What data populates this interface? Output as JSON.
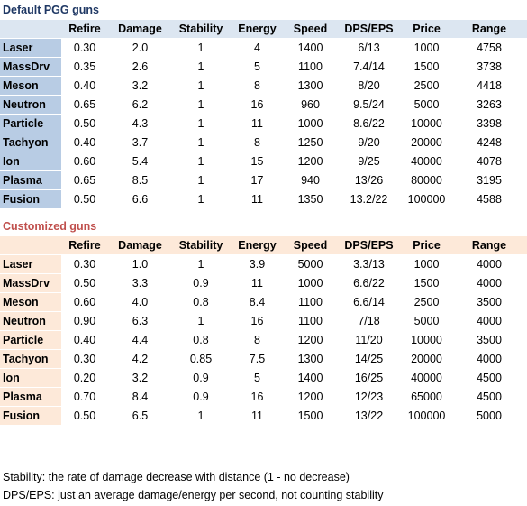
{
  "default_section": {
    "title": "Default PGG guns",
    "headers": [
      "",
      "Refire",
      "Damage",
      "Stability",
      "Energy",
      "Speed",
      "DPS/EPS",
      "Price",
      "Range"
    ],
    "rows": [
      [
        "Laser",
        "0.30",
        "2.0",
        "1",
        "4",
        "1400",
        "6/13",
        "1000",
        "4758"
      ],
      [
        "MassDrv",
        "0.35",
        "2.6",
        "1",
        "5",
        "1100",
        "7.4/14",
        "1500",
        "3738"
      ],
      [
        "Meson",
        "0.40",
        "3.2",
        "1",
        "8",
        "1300",
        "8/20",
        "2500",
        "4418"
      ],
      [
        "Neutron",
        "0.65",
        "6.2",
        "1",
        "16",
        "960",
        "9.5/24",
        "5000",
        "3263"
      ],
      [
        "Particle",
        "0.50",
        "4.3",
        "1",
        "11",
        "1000",
        "8.6/22",
        "10000",
        "3398"
      ],
      [
        "Tachyon",
        "0.40",
        "3.7",
        "1",
        "8",
        "1250",
        "9/20",
        "20000",
        "4248"
      ],
      [
        "Ion",
        "0.60",
        "5.4",
        "1",
        "15",
        "1200",
        "9/25",
        "40000",
        "4078"
      ],
      [
        "Plasma",
        "0.65",
        "8.5",
        "1",
        "17",
        "940",
        "13/26",
        "80000",
        "3195"
      ],
      [
        "Fusion",
        "0.50",
        "6.6",
        "1",
        "11",
        "1350",
        "13.2/22",
        "100000",
        "4588"
      ]
    ]
  },
  "custom_section": {
    "title": "Customized guns",
    "headers": [
      "",
      "Refire",
      "Damage",
      "Stability",
      "Energy",
      "Speed",
      "DPS/EPS",
      "Price",
      "Range"
    ],
    "rows": [
      [
        "Laser",
        "0.30",
        "1.0",
        "1",
        "3.9",
        "5000",
        "3.3/13",
        "1000",
        "4000"
      ],
      [
        "MassDrv",
        "0.50",
        "3.3",
        "0.9",
        "11",
        "1000",
        "6.6/22",
        "1500",
        "4000"
      ],
      [
        "Meson",
        "0.60",
        "4.0",
        "0.8",
        "8.4",
        "1100",
        "6.6/14",
        "2500",
        "3500"
      ],
      [
        "Neutron",
        "0.90",
        "6.3",
        "1",
        "16",
        "1100",
        "7/18",
        "5000",
        "4000"
      ],
      [
        "Particle",
        "0.40",
        "4.4",
        "0.8",
        "8",
        "1200",
        "11/20",
        "10000",
        "3500"
      ],
      [
        "Tachyon",
        "0.30",
        "4.2",
        "0.85",
        "7.5",
        "1300",
        "14/25",
        "20000",
        "4000"
      ],
      [
        "Ion",
        "0.20",
        "3.2",
        "0.9",
        "5",
        "1400",
        "16/25",
        "40000",
        "4500"
      ],
      [
        "Plasma",
        "0.70",
        "8.4",
        "0.9",
        "16",
        "1200",
        "12/23",
        "65000",
        "4500"
      ],
      [
        "Fusion",
        "0.50",
        "6.5",
        "1",
        "11",
        "1500",
        "13/22",
        "100000",
        "5000"
      ]
    ]
  },
  "notes": [
    "Stability: the rate of damage decrease with distance (1 - no decrease)",
    "DPS/EPS: just an average damage/energy per second, not counting stability"
  ],
  "colors": {
    "default_title": "#1f3864",
    "default_header_fill": "#dce6f1",
    "default_rowlabel_fill": "#b8cce4",
    "custom_title": "#c0504d",
    "custom_fill": "#fde9d9"
  }
}
